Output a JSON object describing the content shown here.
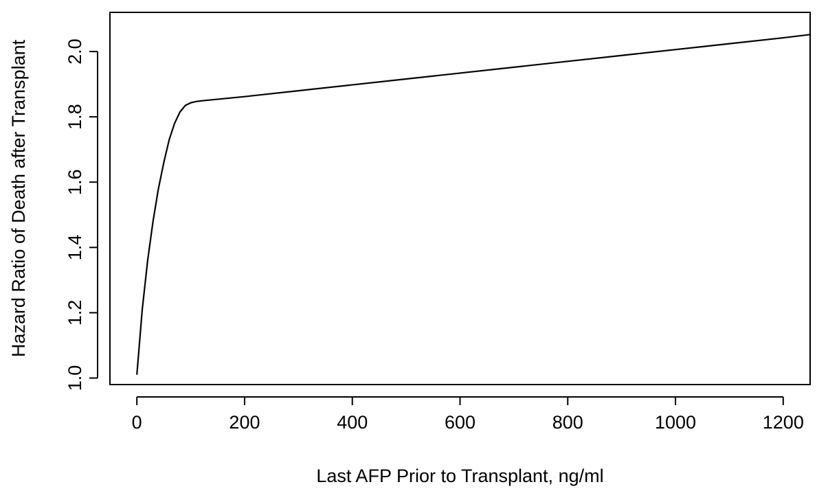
{
  "chart_data": {
    "type": "line",
    "title": "",
    "xlabel": "Last AFP Prior to Transplant, ng/ml",
    "ylabel": "Hazard Ratio of Death after Transplant",
    "xlim": [
      -50,
      1250
    ],
    "ylim": [
      0.98,
      2.12
    ],
    "x_ticks": [
      0,
      200,
      400,
      600,
      800,
      1000,
      1200
    ],
    "x_tick_labels": [
      "0",
      "200",
      "400",
      "600",
      "800",
      "1000",
      "1200"
    ],
    "y_ticks": [
      1.0,
      1.2,
      1.4,
      1.6,
      1.8,
      2.0
    ],
    "y_tick_labels": [
      "1.0",
      "1.2",
      "1.4",
      "1.6",
      "1.8",
      "2.0"
    ],
    "grid": false,
    "series": [
      {
        "x": [
          0,
          10,
          20,
          30,
          40,
          50,
          60,
          70,
          80,
          90,
          100,
          110,
          120,
          200,
          300,
          400,
          500,
          600,
          700,
          800,
          900,
          1000,
          1100,
          1200,
          1250
        ],
        "y": [
          1.01,
          1.21,
          1.36,
          1.48,
          1.58,
          1.66,
          1.73,
          1.78,
          1.815,
          1.835,
          1.843,
          1.847,
          1.849,
          1.862,
          1.88,
          1.898,
          1.916,
          1.934,
          1.952,
          1.97,
          1.988,
          2.006,
          2.024,
          2.042,
          2.052
        ]
      }
    ]
  }
}
